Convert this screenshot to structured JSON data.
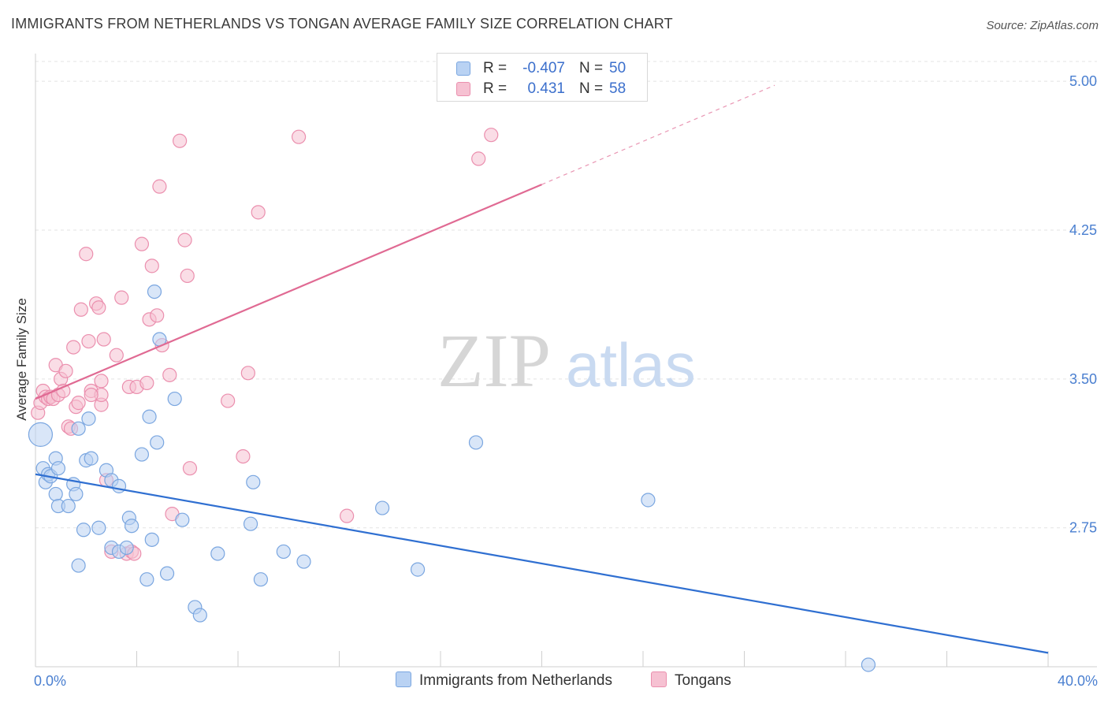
{
  "title": "IMMIGRANTS FROM NETHERLANDS VS TONGAN AVERAGE FAMILY SIZE CORRELATION CHART",
  "source": "Source: ZipAtlas.com",
  "watermark": {
    "zip": "ZIP",
    "atlas": "atlas"
  },
  "colors": {
    "blue_fill": "#b9d2f3",
    "blue_stroke": "#7aa6e0",
    "blue_line": "#2f6fd1",
    "pink_fill": "#f6c1d2",
    "pink_stroke": "#eb8fae",
    "pink_line": "#e06a93",
    "tick_text": "#4a7fd0",
    "grid": "#e3e3e3"
  },
  "legend": {
    "rows": [
      {
        "r_label": "R =",
        "r_value": "-0.407",
        "n_label": "N =",
        "n_value": "50"
      },
      {
        "r_label": "R =",
        "r_value": "0.431",
        "n_label": "N =",
        "n_value": "58"
      }
    ]
  },
  "bottom_legend": {
    "series1": "Immigrants from Netherlands",
    "series2": "Tongans"
  },
  "chart_data": {
    "type": "scatter",
    "title": "IMMIGRANTS FROM NETHERLANDS VS TONGAN AVERAGE FAMILY SIZE CORRELATION CHART",
    "xlabel": "",
    "ylabel": "Average Family Size",
    "xlim": [
      0,
      40
    ],
    "ylim": [
      2.05,
      5.1
    ],
    "x_tick_labels": [
      "0.0%",
      "40.0%"
    ],
    "y_ticks": [
      2.75,
      3.5,
      4.25,
      5.0
    ],
    "y_tick_labels": [
      "2.75",
      "3.50",
      "4.25",
      "5.00"
    ],
    "grid": true,
    "legend_position": "top-center",
    "series": [
      {
        "name": "Immigrants from Netherlands",
        "color": "#7aa6e0",
        "trend": {
          "x0": 0,
          "y0": 3.02,
          "x1": 40,
          "y1": 2.12
        },
        "points": [
          [
            0.2,
            3.22
          ],
          [
            0.3,
            3.05
          ],
          [
            0.4,
            2.98
          ],
          [
            0.5,
            3.02
          ],
          [
            0.6,
            3.01
          ],
          [
            0.8,
            3.1
          ],
          [
            0.9,
            3.05
          ],
          [
            0.8,
            2.92
          ],
          [
            0.9,
            2.86
          ],
          [
            1.3,
            2.86
          ],
          [
            1.5,
            2.97
          ],
          [
            1.6,
            2.92
          ],
          [
            1.7,
            3.25
          ],
          [
            1.9,
            2.74
          ],
          [
            2.0,
            3.09
          ],
          [
            2.1,
            3.3
          ],
          [
            2.2,
            3.1
          ],
          [
            2.5,
            2.75
          ],
          [
            2.8,
            3.04
          ],
          [
            3.0,
            2.99
          ],
          [
            3.3,
            2.96
          ],
          [
            3.0,
            2.65
          ],
          [
            3.3,
            2.63
          ],
          [
            3.6,
            2.65
          ],
          [
            3.7,
            2.8
          ],
          [
            3.8,
            2.76
          ],
          [
            4.2,
            3.12
          ],
          [
            4.4,
            2.49
          ],
          [
            4.5,
            3.31
          ],
          [
            4.7,
            3.94
          ],
          [
            4.6,
            2.69
          ],
          [
            4.8,
            3.18
          ],
          [
            4.9,
            3.7
          ],
          [
            5.2,
            2.52
          ],
          [
            5.5,
            3.4
          ],
          [
            5.8,
            2.79
          ],
          [
            6.3,
            2.35
          ],
          [
            6.5,
            2.31
          ],
          [
            7.2,
            2.62
          ],
          [
            8.5,
            2.77
          ],
          [
            8.6,
            2.98
          ],
          [
            8.9,
            2.49
          ],
          [
            9.8,
            2.63
          ],
          [
            10.6,
            2.58
          ],
          [
            13.7,
            2.85
          ],
          [
            15.1,
            2.54
          ],
          [
            17.4,
            3.18
          ],
          [
            24.2,
            2.89
          ],
          [
            32.9,
            2.06
          ],
          [
            1.7,
            2.56
          ]
        ]
      },
      {
        "name": "Tongans",
        "color": "#eb8fae",
        "trend": {
          "x0": 0,
          "y0": 3.4,
          "x1": 20,
          "y1": 4.48,
          "dashed_to_x": 29.2,
          "dashed_to_y": 4.98
        },
        "points": [
          [
            0.1,
            3.33
          ],
          [
            0.2,
            3.38
          ],
          [
            0.3,
            3.44
          ],
          [
            0.4,
            3.41
          ],
          [
            0.5,
            3.4
          ],
          [
            0.6,
            3.41
          ],
          [
            0.7,
            3.4
          ],
          [
            0.8,
            3.57
          ],
          [
            0.9,
            3.42
          ],
          [
            1.0,
            3.5
          ],
          [
            1.1,
            3.44
          ],
          [
            1.2,
            3.54
          ],
          [
            1.3,
            3.26
          ],
          [
            1.4,
            3.25
          ],
          [
            1.5,
            3.66
          ],
          [
            1.6,
            3.36
          ],
          [
            1.7,
            3.38
          ],
          [
            1.8,
            3.85
          ],
          [
            2.0,
            4.13
          ],
          [
            2.1,
            3.69
          ],
          [
            2.2,
            3.44
          ],
          [
            2.4,
            3.88
          ],
          [
            2.5,
            3.86
          ],
          [
            2.6,
            3.37
          ],
          [
            2.6,
            3.42
          ],
          [
            2.6,
            3.49
          ],
          [
            2.7,
            3.7
          ],
          [
            2.8,
            2.99
          ],
          [
            3.0,
            2.63
          ],
          [
            3.2,
            3.62
          ],
          [
            3.4,
            3.91
          ],
          [
            3.6,
            2.62
          ],
          [
            3.7,
            3.46
          ],
          [
            3.8,
            2.63
          ],
          [
            3.9,
            2.62
          ],
          [
            4.0,
            3.46
          ],
          [
            4.2,
            4.18
          ],
          [
            4.4,
            3.48
          ],
          [
            4.5,
            3.8
          ],
          [
            4.6,
            4.07
          ],
          [
            4.8,
            3.82
          ],
          [
            4.9,
            4.47
          ],
          [
            5.0,
            3.67
          ],
          [
            5.3,
            3.52
          ],
          [
            5.4,
            2.82
          ],
          [
            5.7,
            4.7
          ],
          [
            5.9,
            4.2
          ],
          [
            6.0,
            4.02
          ],
          [
            6.1,
            3.05
          ],
          [
            7.6,
            3.39
          ],
          [
            8.2,
            3.11
          ],
          [
            8.4,
            3.53
          ],
          [
            8.8,
            4.34
          ],
          [
            10.4,
            4.72
          ],
          [
            12.3,
            2.81
          ],
          [
            17.5,
            4.61
          ],
          [
            18.0,
            4.73
          ],
          [
            2.2,
            3.42
          ]
        ]
      }
    ]
  }
}
